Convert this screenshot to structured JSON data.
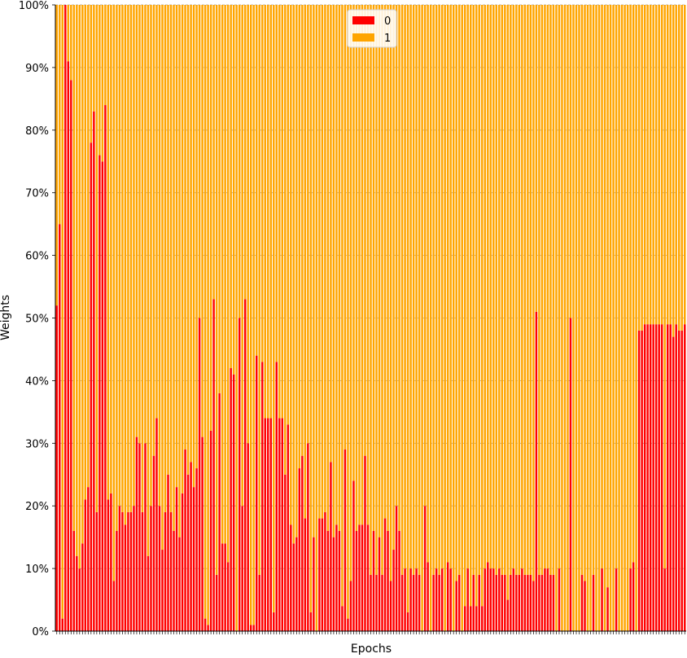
{
  "chart_data": {
    "type": "bar",
    "stacked": true,
    "normalized": true,
    "title": "",
    "xlabel": "Epochs",
    "ylabel": "Weights",
    "ylim": [
      0,
      100
    ],
    "yticks": [
      "0%",
      "10%",
      "20%",
      "30%",
      "40%",
      "50%",
      "60%",
      "70%",
      "80%",
      "90%",
      "100%"
    ],
    "grid": "horizontal-dashed",
    "legend": {
      "placement": "top-center"
    },
    "colors": {
      "0": "#ff0000",
      "1": "#ffa500",
      "grid": "#a0a0a0"
    },
    "series": [
      {
        "name": "0",
        "values": [
          52,
          65,
          2,
          100,
          91,
          88,
          16,
          12,
          10,
          14,
          21,
          23,
          78,
          83,
          19,
          76,
          75,
          84,
          21,
          22,
          8,
          16,
          20,
          19,
          17,
          19,
          19,
          20,
          31,
          30,
          19,
          30,
          12,
          20,
          28,
          34,
          20,
          13,
          19,
          25,
          19,
          16,
          23,
          15,
          22,
          29,
          25,
          27,
          23,
          26,
          50,
          31,
          2,
          1,
          32,
          53,
          9,
          38,
          14,
          14,
          11,
          42,
          41,
          0,
          50,
          20,
          53,
          30,
          1,
          1,
          44,
          9,
          43,
          34,
          34,
          34,
          3,
          43,
          34,
          34,
          25,
          33,
          17,
          14,
          15,
          26,
          28,
          18,
          30,
          3,
          15,
          0,
          18,
          18,
          19,
          16,
          27,
          15,
          17,
          16,
          4,
          29,
          2,
          8,
          24,
          16,
          17,
          17,
          28,
          17,
          9,
          16,
          9,
          15,
          9,
          18,
          16,
          8,
          13,
          20,
          16,
          9,
          10,
          3,
          10,
          9,
          10,
          9,
          0,
          20,
          11,
          0,
          9,
          10,
          9,
          10,
          0,
          11,
          10,
          0,
          8,
          9,
          0,
          4,
          10,
          4,
          9,
          4,
          9,
          4,
          10,
          11,
          10,
          10,
          9,
          10,
          9,
          9,
          5,
          9,
          10,
          9,
          9,
          10,
          9,
          9,
          9,
          8,
          51,
          9,
          9,
          10,
          10,
          9,
          9,
          0,
          10,
          0,
          0,
          0,
          50,
          0,
          0,
          0,
          9,
          8,
          0,
          0,
          9,
          0,
          0,
          10,
          0,
          7,
          0,
          0,
          10,
          0,
          0,
          0,
          0,
          10,
          11,
          0,
          48,
          48,
          49,
          49,
          49,
          49,
          49,
          49,
          49,
          10,
          49,
          49,
          47,
          49,
          48,
          48,
          49
        ]
      },
      {
        "name": "1",
        "values": [
          48,
          35,
          98,
          0,
          9,
          12,
          84,
          88,
          90,
          86,
          79,
          77,
          22,
          17,
          81,
          24,
          25,
          16,
          79,
          78,
          92,
          84,
          80,
          81,
          83,
          81,
          81,
          80,
          69,
          70,
          81,
          70,
          88,
          80,
          72,
          66,
          80,
          87,
          81,
          75,
          81,
          84,
          77,
          85,
          78,
          71,
          75,
          73,
          77,
          74,
          50,
          69,
          98,
          99,
          68,
          47,
          91,
          62,
          86,
          86,
          89,
          58,
          59,
          100,
          50,
          80,
          47,
          70,
          99,
          99,
          56,
          91,
          57,
          66,
          66,
          66,
          97,
          57,
          66,
          66,
          75,
          67,
          83,
          86,
          85,
          74,
          72,
          82,
          70,
          97,
          85,
          100,
          82,
          82,
          81,
          84,
          73,
          85,
          83,
          84,
          96,
          71,
          98,
          92,
          76,
          84,
          83,
          83,
          72,
          83,
          91,
          84,
          91,
          85,
          91,
          82,
          84,
          92,
          87,
          80,
          84,
          91,
          90,
          97,
          90,
          91,
          90,
          91,
          100,
          80,
          89,
          100,
          91,
          90,
          91,
          90,
          100,
          89,
          90,
          100,
          92,
          91,
          100,
          96,
          90,
          96,
          91,
          96,
          91,
          96,
          90,
          89,
          90,
          90,
          91,
          90,
          91,
          91,
          95,
          91,
          90,
          91,
          91,
          90,
          91,
          91,
          91,
          92,
          49,
          91,
          91,
          90,
          90,
          91,
          91,
          100,
          90,
          100,
          100,
          100,
          50,
          100,
          100,
          100,
          91,
          92,
          100,
          100,
          91,
          100,
          100,
          90,
          100,
          93,
          100,
          100,
          90,
          100,
          100,
          100,
          100,
          90,
          89,
          100,
          52,
          52,
          51,
          51,
          51,
          51,
          51,
          51,
          51,
          90,
          51,
          51,
          53,
          51,
          52,
          52,
          51
        ]
      }
    ]
  }
}
